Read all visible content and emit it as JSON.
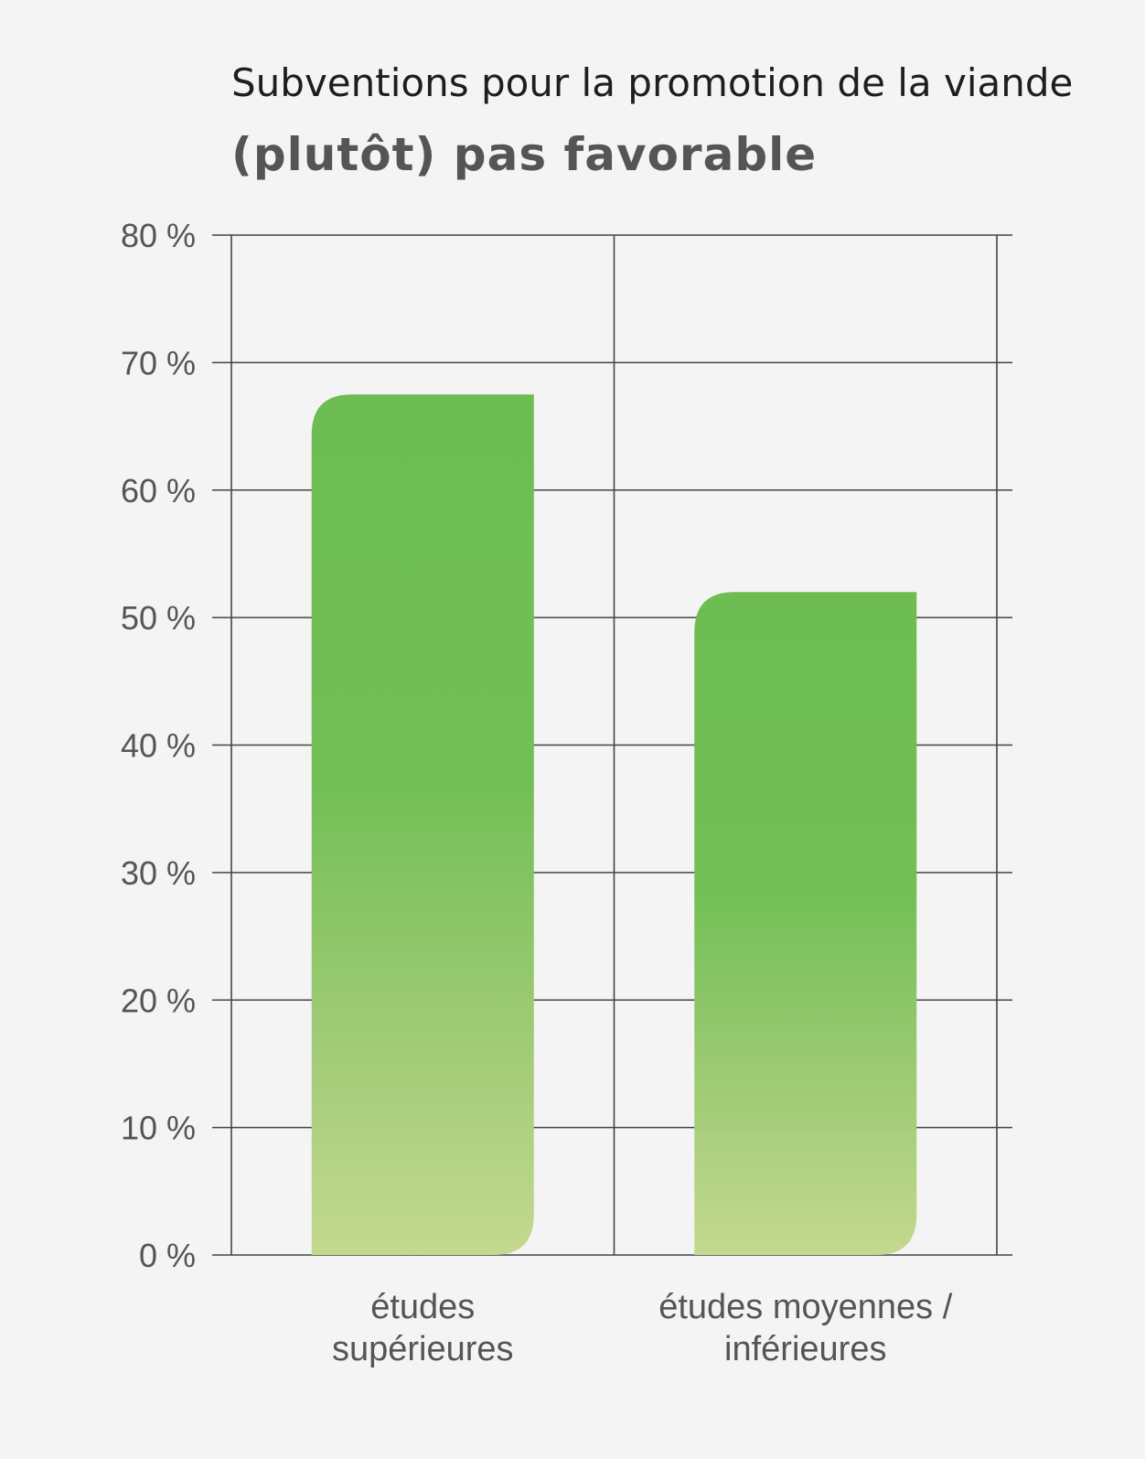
{
  "chart_data": {
    "type": "bar",
    "title": "Subventions pour la promotion de la viande",
    "subtitle": "(plutôt) pas favorable",
    "categories": [
      [
        "études",
        "supérieures"
      ],
      [
        "études moyennes /",
        "inférieures"
      ]
    ],
    "values": [
      67.5,
      52
    ],
    "ylim": [
      0,
      80
    ],
    "yticks": [
      0,
      10,
      20,
      30,
      40,
      50,
      60,
      70,
      80
    ],
    "ytick_labels": [
      "0 %",
      "10 %",
      "20 %",
      "30 %",
      "40 %",
      "50 %",
      "60 %",
      "70 %",
      "80 %"
    ],
    "grid": true,
    "colors": {
      "bar_top": "#6dbd52",
      "bar_mid": "#7cc05c",
      "bar_bottom": "#c3d990",
      "grid": "#444444",
      "text": "#555555"
    }
  }
}
